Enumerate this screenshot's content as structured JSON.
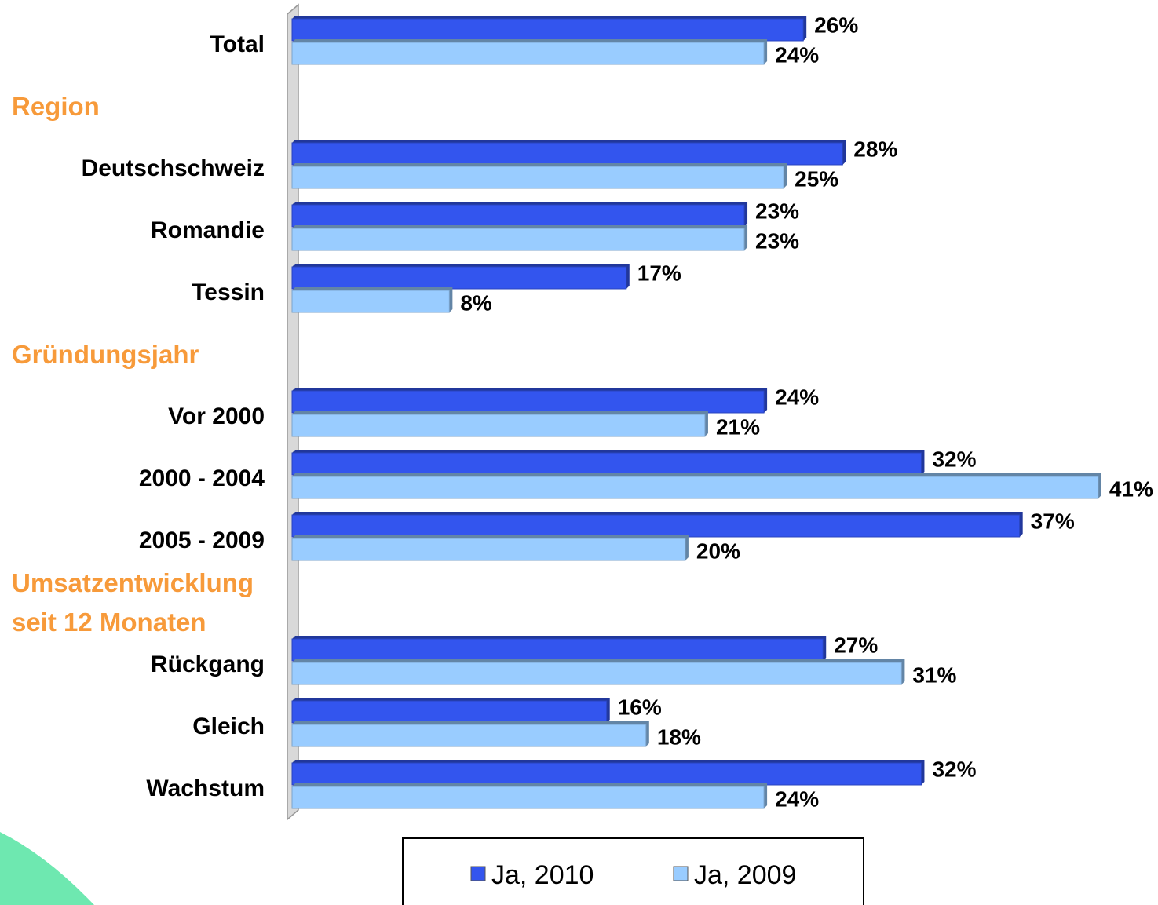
{
  "chart_data": {
    "type": "bar",
    "orientation": "horizontal",
    "categories": [
      "Total",
      "Region",
      "Deutschschweiz",
      "Romandie",
      "Tessin",
      "Gründungsjahr",
      "Vor 2000",
      "2000 - 2004",
      "2005 - 2009",
      "Umsatzentwicklung seit 12 Monaten",
      "Rückgang",
      "Gleich",
      "Wachstum"
    ],
    "series": [
      {
        "name": "Ja, 2010",
        "color": "#3355ee",
        "values": [
          26,
          null,
          28,
          23,
          17,
          null,
          24,
          32,
          37,
          null,
          27,
          16,
          32
        ],
        "value_labels": [
          "26%",
          null,
          "28%",
          "23%",
          "17%",
          null,
          "24%",
          "32%",
          "37%",
          null,
          "27%",
          "16%",
          "32%"
        ]
      },
      {
        "name": "Ja, 2009",
        "color": "#99ccff",
        "values": [
          24,
          null,
          25,
          23,
          8,
          null,
          21,
          41,
          20,
          null,
          31,
          18,
          24
        ],
        "value_labels": [
          "24%",
          null,
          "25%",
          "23%",
          "8%",
          null,
          "21%",
          "41%",
          "20%",
          null,
          "31%",
          "18%",
          "24%"
        ]
      }
    ],
    "xlim": [
      0,
      44
    ]
  }
}
